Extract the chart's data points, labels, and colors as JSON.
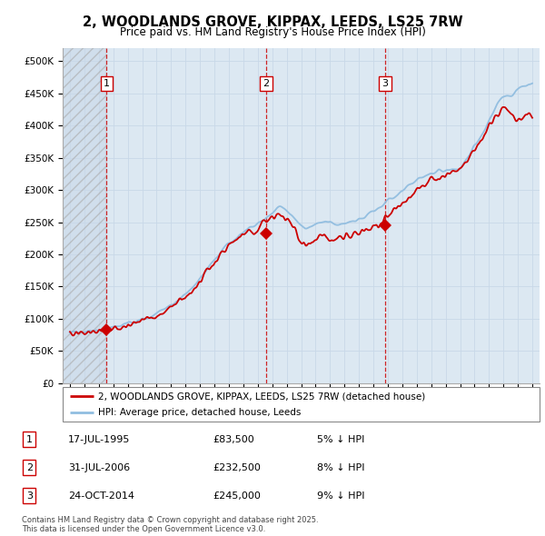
{
  "title_line1": "2, WOODLANDS GROVE, KIPPAX, LEEDS, LS25 7RW",
  "title_line2": "Price paid vs. HM Land Registry's House Price Index (HPI)",
  "ylim": [
    0,
    520000
  ],
  "yticks": [
    0,
    50000,
    100000,
    150000,
    200000,
    250000,
    300000,
    350000,
    400000,
    450000,
    500000
  ],
  "ytick_labels": [
    "£0",
    "£50K",
    "£100K",
    "£150K",
    "£200K",
    "£250K",
    "£300K",
    "£350K",
    "£400K",
    "£450K",
    "£500K"
  ],
  "hpi_color": "#90bde0",
  "price_color": "#cc0000",
  "marker_color": "#cc0000",
  "grid_color": "#c8d8e8",
  "bg_color": "#ffffff",
  "plot_bg": "#dce8f2",
  "legend_line1": "2, WOODLANDS GROVE, KIPPAX, LEEDS, LS25 7RW (detached house)",
  "legend_line2": "HPI: Average price, detached house, Leeds",
  "sale1_label": "1",
  "sale1_date": "17-JUL-1995",
  "sale1_price": "£83,500",
  "sale1_hpi": "5% ↓ HPI",
  "sale1_x": 1995.54,
  "sale1_y": 83500,
  "sale2_label": "2",
  "sale2_date": "31-JUL-2006",
  "sale2_price": "£232,500",
  "sale2_hpi": "8% ↓ HPI",
  "sale2_x": 2006.58,
  "sale2_y": 232500,
  "sale3_label": "3",
  "sale3_date": "24-OCT-2014",
  "sale3_price": "£245,000",
  "sale3_hpi": "9% ↓ HPI",
  "sale3_x": 2014.81,
  "sale3_y": 245000,
  "footer": "Contains HM Land Registry data © Crown copyright and database right 2025.\nThis data is licensed under the Open Government Licence v3.0.",
  "xlim_left": 1992.5,
  "xlim_right": 2025.5,
  "hpi_keypoints": [
    [
      1993.0,
      78000
    ],
    [
      1994.0,
      80000
    ],
    [
      1995.0,
      82000
    ],
    [
      1996.0,
      86000
    ],
    [
      1997.0,
      92000
    ],
    [
      1998.0,
      99000
    ],
    [
      1999.0,
      108000
    ],
    [
      2000.0,
      122000
    ],
    [
      2001.0,
      138000
    ],
    [
      2002.0,
      162000
    ],
    [
      2003.0,
      192000
    ],
    [
      2004.0,
      218000
    ],
    [
      2005.0,
      235000
    ],
    [
      2006.0,
      248000
    ],
    [
      2007.0,
      265000
    ],
    [
      2007.5,
      275000
    ],
    [
      2008.0,
      268000
    ],
    [
      2008.5,
      255000
    ],
    [
      2009.0,
      245000
    ],
    [
      2009.5,
      240000
    ],
    [
      2010.0,
      248000
    ],
    [
      2010.5,
      250000
    ],
    [
      2011.0,
      248000
    ],
    [
      2011.5,
      246000
    ],
    [
      2012.0,
      248000
    ],
    [
      2012.5,
      250000
    ],
    [
      2013.0,
      255000
    ],
    [
      2013.5,
      260000
    ],
    [
      2014.0,
      268000
    ],
    [
      2014.5,
      272000
    ],
    [
      2015.0,
      283000
    ],
    [
      2015.5,
      290000
    ],
    [
      2016.0,
      298000
    ],
    [
      2016.5,
      308000
    ],
    [
      2017.0,
      315000
    ],
    [
      2017.5,
      320000
    ],
    [
      2018.0,
      325000
    ],
    [
      2018.5,
      328000
    ],
    [
      2019.0,
      330000
    ],
    [
      2019.5,
      333000
    ],
    [
      2020.0,
      335000
    ],
    [
      2020.5,
      348000
    ],
    [
      2021.0,
      368000
    ],
    [
      2021.5,
      385000
    ],
    [
      2022.0,
      410000
    ],
    [
      2022.5,
      430000
    ],
    [
      2023.0,
      445000
    ],
    [
      2023.5,
      448000
    ],
    [
      2024.0,
      455000
    ],
    [
      2024.5,
      462000
    ],
    [
      2025.0,
      468000
    ]
  ],
  "red_keypoints": [
    [
      1993.0,
      76000
    ],
    [
      1994.0,
      78000
    ],
    [
      1995.0,
      80000
    ],
    [
      1996.0,
      84000
    ],
    [
      1997.0,
      90000
    ],
    [
      1998.0,
      96000
    ],
    [
      1999.0,
      105000
    ],
    [
      2000.0,
      118000
    ],
    [
      2001.0,
      134000
    ],
    [
      2002.0,
      158000
    ],
    [
      2003.0,
      188000
    ],
    [
      2004.0,
      214000
    ],
    [
      2005.0,
      230000
    ],
    [
      2006.0,
      240000
    ],
    [
      2006.5,
      250000
    ],
    [
      2007.0,
      258000
    ],
    [
      2007.5,
      265000
    ],
    [
      2008.0,
      255000
    ],
    [
      2008.5,
      238000
    ],
    [
      2009.0,
      220000
    ],
    [
      2009.5,
      215000
    ],
    [
      2010.0,
      222000
    ],
    [
      2010.5,
      228000
    ],
    [
      2011.0,
      225000
    ],
    [
      2011.5,
      224000
    ],
    [
      2012.0,
      226000
    ],
    [
      2012.5,
      228000
    ],
    [
      2013.0,
      232000
    ],
    [
      2013.5,
      238000
    ],
    [
      2014.0,
      244000
    ],
    [
      2014.5,
      248000
    ],
    [
      2015.0,
      260000
    ],
    [
      2015.5,
      268000
    ],
    [
      2016.0,
      278000
    ],
    [
      2016.5,
      290000
    ],
    [
      2017.0,
      300000
    ],
    [
      2017.5,
      308000
    ],
    [
      2018.0,
      315000
    ],
    [
      2018.5,
      320000
    ],
    [
      2019.0,
      322000
    ],
    [
      2019.5,
      326000
    ],
    [
      2020.0,
      330000
    ],
    [
      2020.5,
      345000
    ],
    [
      2021.0,
      362000
    ],
    [
      2021.5,
      378000
    ],
    [
      2022.0,
      398000
    ],
    [
      2022.5,
      415000
    ],
    [
      2023.0,
      425000
    ],
    [
      2023.5,
      418000
    ],
    [
      2024.0,
      408000
    ],
    [
      2024.5,
      415000
    ],
    [
      2025.0,
      420000
    ]
  ]
}
